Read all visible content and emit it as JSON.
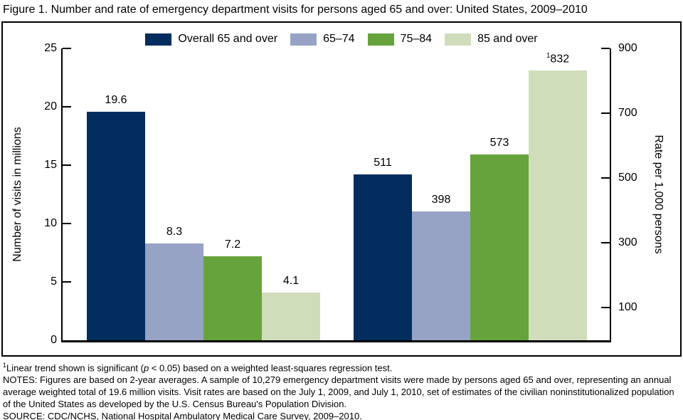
{
  "chart_data": {
    "type": "bar",
    "title": "Figure 1. Number and rate of emergency department visits for persons aged 65 and over: United States, 2009–2010",
    "legend_position": "top",
    "grid": false,
    "series": [
      {
        "name": "Overall 65 and over",
        "color": "#022d5e"
      },
      {
        "name": "65–74",
        "color": "#97a3c4"
      },
      {
        "name": "75–84",
        "color": "#67a33c"
      },
      {
        "name": "85 and over",
        "color": "#cfddbb"
      }
    ],
    "left_axis": {
      "title": "Number of visits in millions",
      "min": 0,
      "max": 25,
      "ticks": [
        0,
        5,
        10,
        15,
        20,
        25
      ]
    },
    "right_axis": {
      "title": "Rate per 1,000 persons",
      "min": 0,
      "max": 900,
      "ticks": [
        100,
        300,
        500,
        700,
        900
      ]
    },
    "groups": [
      {
        "label": "number-of-visits",
        "axis": "left",
        "values": [
          19.6,
          8.3,
          7.2,
          4.1
        ],
        "value_labels": [
          {
            "text": "19.6"
          },
          {
            "text": "8.3"
          },
          {
            "text": "7.2"
          },
          {
            "text": "4.1"
          }
        ]
      },
      {
        "label": "rate-per-1000",
        "axis": "right",
        "values": [
          511,
          398,
          573,
          832
        ],
        "value_labels": [
          {
            "text": "511"
          },
          {
            "text": "398"
          },
          {
            "text": "573"
          },
          {
            "sup": "1",
            "text": "832"
          }
        ]
      }
    ]
  },
  "footnotes": {
    "footnote1": {
      "sup": "1",
      "pre": "Linear trend shown is significant (",
      "italic": "p",
      "post": " < 0.05) based on a weighted least-squares regression test."
    },
    "notes": "NOTES: Figures are based on 2-year averages. A sample of 10,279 emergency department visits were made by persons aged 65 and over, representing an annual average weighted total of 19.6 million visits. Visit rates are based on the July 1, 2009, and July 1, 2010, set of estimates of the civilian noninstitutionalized population of the United States as developed by the U.S. Census Bureau's Population Division.",
    "source": "SOURCE: CDC/NCHS, National Hospital Ambulatory Medical Care Survey, 2009–2010."
  }
}
